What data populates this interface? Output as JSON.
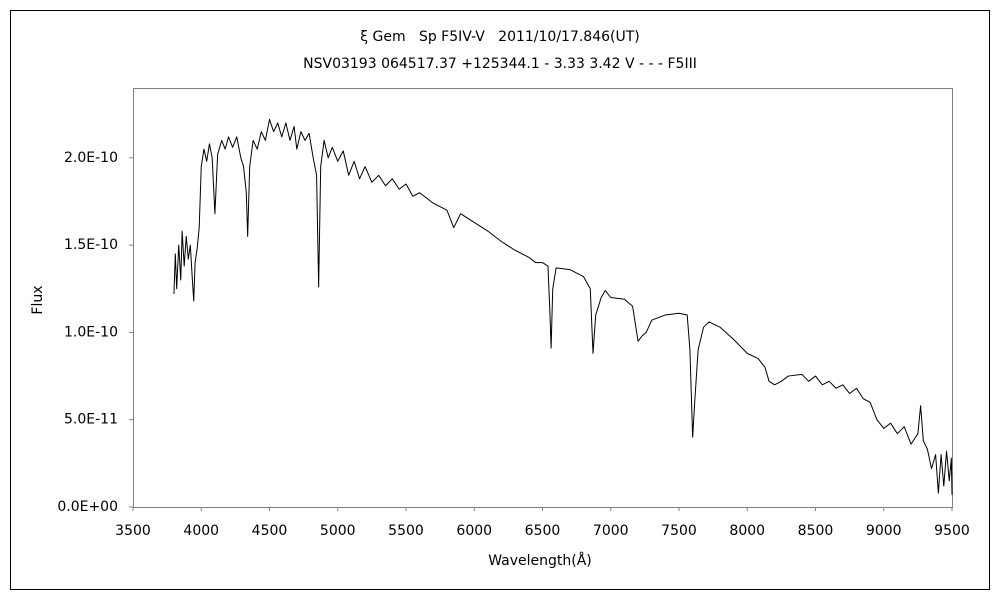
{
  "chart_data": {
    "type": "line",
    "title": "ξ Gem   Sp F5IV-V   2011/10/17.846(UT)",
    "subtitle": "NSV03193 064517.37 +125344.1 - 3.33 3.42 V - - - F5III",
    "x_label": "Wavelength(Å)",
    "y_label": "Flux",
    "color": "#000000",
    "xlim": [
      3500,
      9500
    ],
    "xticks": [
      3500,
      4000,
      4500,
      5000,
      5500,
      6000,
      6500,
      7000,
      7500,
      8000,
      8500,
      9000,
      9500
    ],
    "ylim": [
      0,
      2.4e-10
    ],
    "yticks": [
      {
        "value": 0,
        "label": "0.0E+00"
      },
      {
        "value": 5e-11,
        "label": "5.0E-11"
      },
      {
        "value": 1e-10,
        "label": "1.0E-10"
      },
      {
        "value": 1.5e-10,
        "label": "1.5E-10"
      },
      {
        "value": 2e-10,
        "label": "2.0E-10"
      }
    ],
    "grid": false,
    "x": [
      3800,
      3810,
      3820,
      3835,
      3850,
      3860,
      3875,
      3890,
      3905,
      3920,
      3935,
      3945,
      3955,
      3970,
      3985,
      4000,
      4020,
      4040,
      4060,
      4080,
      4100,
      4120,
      4150,
      4175,
      4200,
      4230,
      4260,
      4290,
      4310,
      4330,
      4340,
      4355,
      4380,
      4410,
      4440,
      4470,
      4500,
      4530,
      4560,
      4590,
      4620,
      4650,
      4680,
      4700,
      4730,
      4760,
      4790,
      4820,
      4845,
      4860,
      4875,
      4900,
      4930,
      4960,
      5000,
      5040,
      5080,
      5120,
      5160,
      5200,
      5250,
      5300,
      5350,
      5400,
      5450,
      5500,
      5550,
      5600,
      5700,
      5800,
      5850,
      5900,
      6000,
      6100,
      6200,
      6300,
      6400,
      6450,
      6500,
      6540,
      6555,
      6563,
      6575,
      6600,
      6700,
      6800,
      6850,
      6870,
      6890,
      6930,
      6960,
      7000,
      7100,
      7160,
      7200,
      7230,
      7260,
      7300,
      7400,
      7500,
      7560,
      7580,
      7600,
      7615,
      7640,
      7680,
      7720,
      7800,
      7900,
      8000,
      8080,
      8130,
      8160,
      8200,
      8250,
      8300,
      8400,
      8450,
      8500,
      8550,
      8600,
      8650,
      8700,
      8750,
      8800,
      8850,
      8900,
      8950,
      9000,
      9050,
      9100,
      9150,
      9200,
      9250,
      9270,
      9290,
      9320,
      9350,
      9380,
      9400,
      9420,
      9440,
      9460,
      9480,
      9495,
      9500
    ],
    "values": [
      1.22e-10,
      1.45e-10,
      1.25e-10,
      1.5e-10,
      1.3e-10,
      1.58e-10,
      1.38e-10,
      1.55e-10,
      1.42e-10,
      1.5e-10,
      1.3e-10,
      1.18e-10,
      1.4e-10,
      1.48e-10,
      1.6e-10,
      1.95e-10,
      2.05e-10,
      1.98e-10,
      2.08e-10,
      2e-10,
      1.68e-10,
      2.02e-10,
      2.1e-10,
      2.05e-10,
      2.12e-10,
      2.06e-10,
      2.12e-10,
      2e-10,
      1.95e-10,
      1.8e-10,
      1.55e-10,
      1.95e-10,
      2.1e-10,
      2.05e-10,
      2.15e-10,
      2.1e-10,
      2.22e-10,
      2.15e-10,
      2.2e-10,
      2.12e-10,
      2.2e-10,
      2.1e-10,
      2.18e-10,
      2.05e-10,
      2.15e-10,
      2.1e-10,
      2.14e-10,
      2e-10,
      1.9e-10,
      1.26e-10,
      1.95e-10,
      2.1e-10,
      2e-10,
      2.06e-10,
      1.98e-10,
      2.04e-10,
      1.9e-10,
      1.98e-10,
      1.88e-10,
      1.95e-10,
      1.86e-10,
      1.9e-10,
      1.84e-10,
      1.88e-10,
      1.82e-10,
      1.85e-10,
      1.78e-10,
      1.8e-10,
      1.74e-10,
      1.7e-10,
      1.6e-10,
      1.68e-10,
      1.63e-10,
      1.58e-10,
      1.52e-10,
      1.47e-10,
      1.43e-10,
      1.4e-10,
      1.4e-10,
      1.38e-10,
      1.1e-10,
      9.1e-11,
      1.25e-10,
      1.37e-10,
      1.36e-10,
      1.32e-10,
      1.25e-10,
      8.8e-11,
      1.1e-10,
      1.2e-10,
      1.24e-10,
      1.2e-10,
      1.19e-10,
      1.15e-10,
      9.5e-11,
      9.8e-11,
      1e-10,
      1.07e-10,
      1.1e-10,
      1.11e-10,
      1.1e-10,
      9e-11,
      4e-11,
      6e-11,
      9e-11,
      1.03e-10,
      1.06e-10,
      1.03e-10,
      9.6e-11,
      8.8e-11,
      8.5e-11,
      8e-11,
      7.2e-11,
      7e-11,
      7.2e-11,
      7.5e-11,
      7.6e-11,
      7.2e-11,
      7.5e-11,
      7e-11,
      7.2e-11,
      6.8e-11,
      7e-11,
      6.5e-11,
      6.8e-11,
      6.2e-11,
      6e-11,
      5e-11,
      4.5e-11,
      4.8e-11,
      4.2e-11,
      4.6e-11,
      3.6e-11,
      4.2e-11,
      5.8e-11,
      3.8e-11,
      3.3e-11,
      2.2e-11,
      3e-11,
      8e-12,
      3e-11,
      1.2e-11,
      3.2e-11,
      1.5e-11,
      2.8e-11,
      7e-12
    ]
  }
}
